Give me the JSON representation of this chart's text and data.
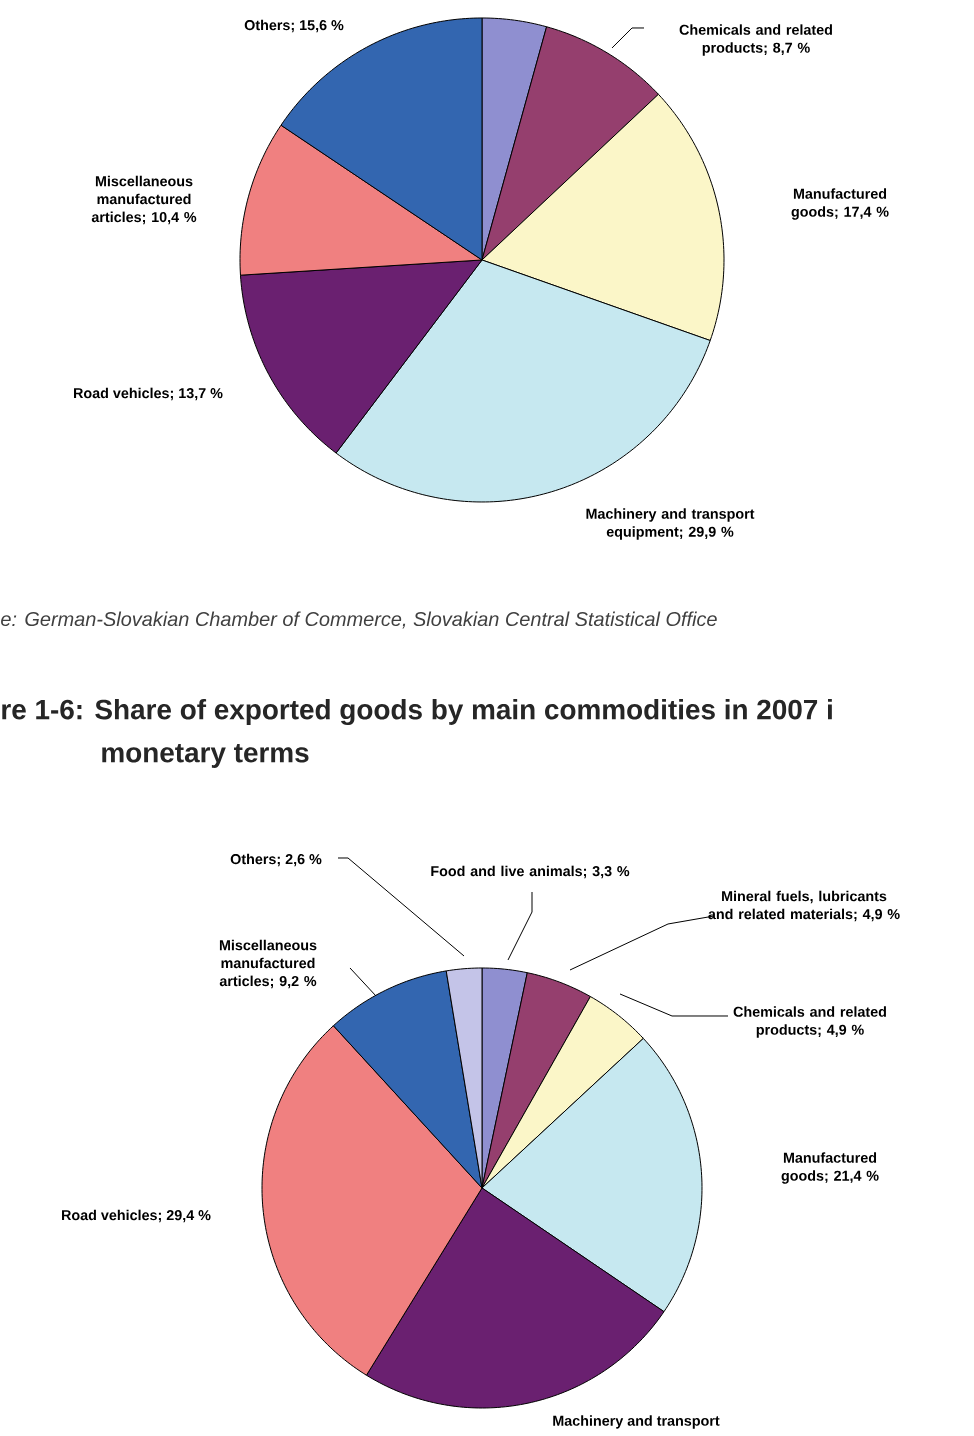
{
  "chart_data": [
    {
      "type": "pie",
      "categories": [
        null,
        "Chemicals and related products",
        "Manufactured goods",
        "Machinery and transport equipment",
        "Road vehicles",
        "Miscellaneous manufactured articles",
        "Others"
      ],
      "values": [
        4.3,
        8.7,
        17.4,
        29.9,
        13.7,
        10.4,
        15.6
      ],
      "value_labels": [
        null,
        "; 8,7 %",
        "; 17,4 %",
        "; 29,9 %",
        "; 13,7 %",
        "; 10,4 %",
        "; 15,6 %"
      ],
      "colors": [
        "#8f8fd0",
        "#953f6e",
        "#fbf6c8",
        "#c6e8f0",
        "#6a2070",
        "#f08080",
        "#3366b0"
      ],
      "annotations": [
        "e: German-Slovakian Chamber of Commerce, Slovakian Central Statistical Office"
      ]
    },
    {
      "type": "pie",
      "title": "re 1-6: Share of exported goods by main commodities in 2007 i",
      "subtitle": "monetary terms",
      "categories": [
        "Food and live animals",
        "Mineral fuels, lubricants and related materials",
        "Chemicals and related products",
        "Manufactured goods",
        "Machinery and transport",
        "Road vehicles",
        "Miscellaneous manufactured articles",
        "Others"
      ],
      "values": [
        3.3,
        4.9,
        4.9,
        21.4,
        24.3,
        29.4,
        9.2,
        2.6
      ],
      "value_labels": [
        "; 3,3 %",
        "; 4,9 %",
        "; 4,9 %",
        "; 21,4 %",
        null,
        "; 29,4 %",
        "; 9,2 %",
        "; 2,6 %"
      ],
      "colors": [
        "#8f8fd0",
        "#953f6e",
        "#fbf6c8",
        "#c6e8f0",
        "#6a2070",
        "#f08080",
        "#3366b0",
        "#c4c4e8"
      ]
    }
  ]
}
